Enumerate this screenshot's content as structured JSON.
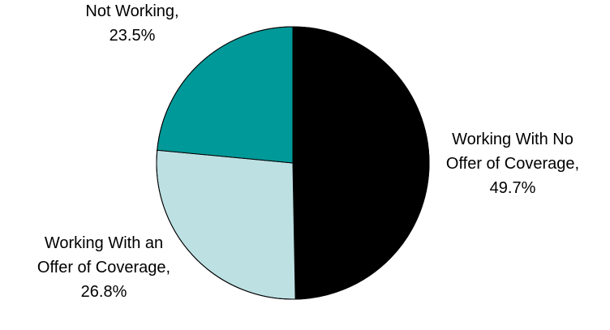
{
  "chart_data": {
    "type": "pie",
    "title": "",
    "start_angle_deg": 0,
    "direction": "clockwise",
    "slice_border_color": "#000000",
    "slices": [
      {
        "label_lines": [
          "Working With No",
          "Offer of Coverage,",
          "49.7%"
        ],
        "category": "Working With No Offer of Coverage",
        "value": 49.7,
        "color": "#000000"
      },
      {
        "label_lines": [
          "Working With an",
          "Offer of Coverage,",
          "26.8%"
        ],
        "category": "Working With an Offer of Coverage",
        "value": 26.8,
        "color": "#bde0e3"
      },
      {
        "label_lines": [
          "Not Working,",
          "23.5%"
        ],
        "category": "Not Working",
        "value": 23.5,
        "color": "#009999"
      }
    ]
  }
}
